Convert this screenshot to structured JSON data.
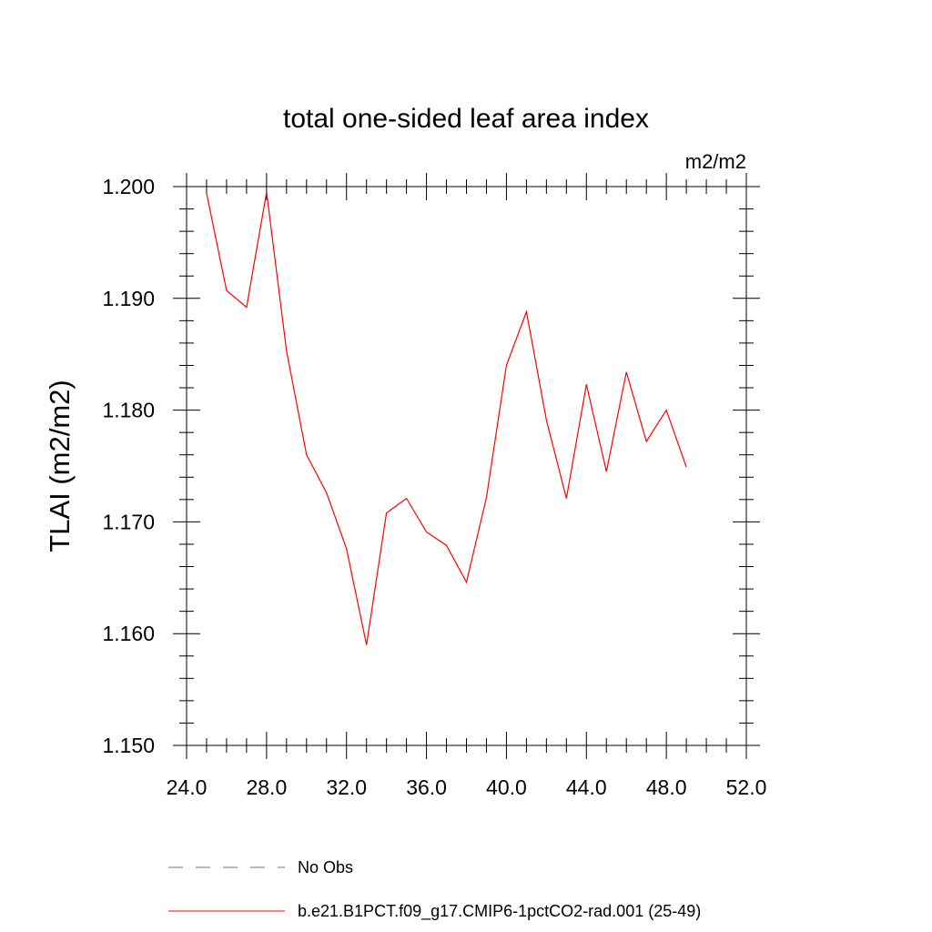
{
  "chart_data": {
    "type": "line",
    "title": "total one-sided leaf area index",
    "units_label": "m2/m2",
    "ylabel": "TLAI  (m2/m2)",
    "xlabel": "",
    "xlim": [
      24.0,
      52.0
    ],
    "ylim": [
      1.15,
      1.2
    ],
    "x_ticks": [
      24.0,
      28.0,
      32.0,
      36.0,
      40.0,
      44.0,
      48.0,
      52.0
    ],
    "x_tick_labels": [
      "24.0",
      "28.0",
      "32.0",
      "36.0",
      "40.0",
      "44.0",
      "48.0",
      "52.0"
    ],
    "y_ticks": [
      1.15,
      1.16,
      1.17,
      1.18,
      1.19,
      1.2
    ],
    "y_tick_labels": [
      "1.150",
      "1.160",
      "1.170",
      "1.180",
      "1.190",
      "1.200"
    ],
    "grid": false,
    "legend_position": "bottom",
    "series": [
      {
        "name": "b.e21.B1PCT.f09_g17.CMIP6-1pctCO2-rad.001 (25-49)",
        "color": "#ff0000",
        "style": "solid",
        "x": [
          25,
          26,
          27,
          28,
          29,
          30,
          31,
          32,
          33,
          34,
          35,
          36,
          37,
          38,
          39,
          40,
          41,
          42,
          43,
          44,
          45,
          46,
          47,
          48,
          49
        ],
        "y": [
          1.1994,
          1.1907,
          1.1892,
          1.1995,
          1.1853,
          1.176,
          1.1726,
          1.1676,
          1.159,
          1.1708,
          1.1721,
          1.1691,
          1.1679,
          1.1646,
          1.1722,
          1.184,
          1.1888,
          1.1791,
          1.1721,
          1.1823,
          1.1745,
          1.1834,
          1.1772,
          1.18,
          1.1749
        ]
      }
    ],
    "legend": [
      {
        "label": "No Obs",
        "color": "#6a6ab8",
        "style": "dashed"
      },
      {
        "label": "b.e21.B1PCT.f09_g17.CMIP6-1pctCO2-rad.001 (25-49)",
        "color": "#ff0000",
        "style": "solid"
      }
    ]
  }
}
